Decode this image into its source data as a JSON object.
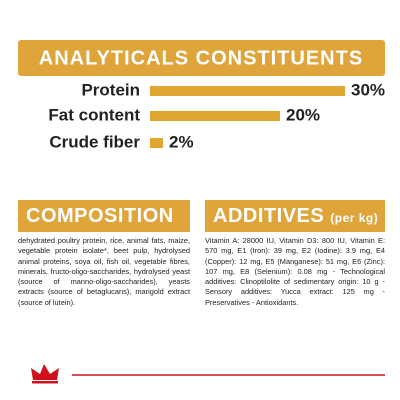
{
  "chart_data": {
    "type": "bar",
    "title": "ANALYTICALS CONSTITUENTS",
    "categories": [
      "Protein",
      "Fat content",
      "Crude fiber"
    ],
    "values": [
      30,
      20,
      2
    ],
    "value_labels": [
      "30%",
      "20%",
      "2%"
    ],
    "color": "#e0a631",
    "banner_color": "#dfa43a"
  },
  "composition": {
    "heading": "COMPOSITION",
    "text": "dehydrated poultry protein, rice, animal fats, maize, vegetable protein isolate*, beet pulp, hydrolysed animal proteins, soya oil, fish oil, vegetable fibres, minerals, fructo-oligo-saccharides, hydrolysed yeast (source of manno-oligo-saccharides), yeasts extracts (source of betaglucans), marigold extract (source of lutein)."
  },
  "additives": {
    "heading": "ADDITIVES",
    "heading_note": "(per kg)",
    "text": "Vitamin A: 28000 IU, Vitamin D3: 800 IU, Vitamin E: 570 mg, E1 (Iron): 39 mg, E2 (Iodine): 3.9 mg, E4 (Copper): 12 mg, E5 (Manganese): 51 mg, E6 (Zinc): 107 mg, E8 (Selenium): 0.08 mg - Technological additives: Clinoptilolite of sedimentary origin: 10 g - Sensory additives: Yucca extract: 125 mg - Preservatives - Antioxidants."
  }
}
